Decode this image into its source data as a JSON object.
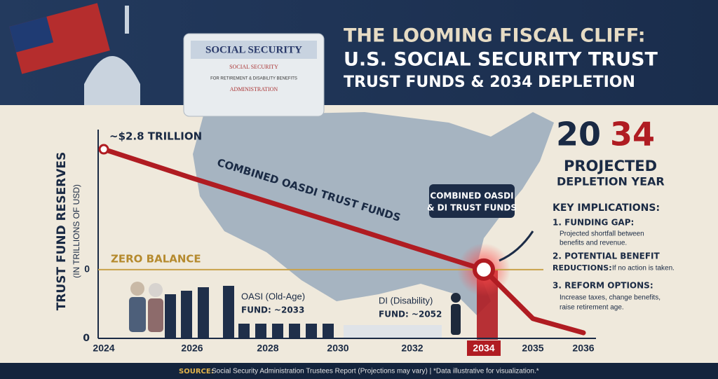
{
  "header": {
    "title_lines": [
      "THE LOOMING FISCAL CLIFF:",
      "U.S. SOCIAL SECURITY TRUST",
      "TRUST FUNDS & 2034 DEPLETION"
    ]
  },
  "card": {
    "title": "SOCIAL SECURITY",
    "seal_top": "SOCIAL SECURITY",
    "subtitle": "FOR RETIREMENT & DISABILITY BENEFITS",
    "seal_bottom": "ADMINISTRATION"
  },
  "chart_data": {
    "type": "line",
    "y_label": "TRUST FUND RESERVES",
    "y_sublabel": "(IN TRILLIONS OF USD)",
    "categories": [
      "2024",
      "2026",
      "2028",
      "2030",
      "2032",
      "2034",
      "2035",
      "2036"
    ],
    "values": [
      2.8,
      2.13,
      1.58,
      1.07,
      0.52,
      0,
      -1.14,
      -1.47
    ],
    "color": "#b01c22",
    "ylim": [
      -1.6,
      3.2
    ],
    "yticks": [
      0
    ],
    "bottom_label": "0",
    "start_label": "~$2.8 TRILLION",
    "line_label": "COMBINED OASDI TRUST FUNDS",
    "callout_lines": [
      "COMBINED OASDI",
      "& DI TRUST FUNDS"
    ],
    "zero_label": "ZERO BALANCE",
    "oasi_lines": [
      "OASI (Old-Age)",
      "FUND: ~2033"
    ],
    "di_lines": [
      "DI (Disability)",
      "FUND: ~2052"
    ]
  },
  "side": {
    "year_prefix": "20",
    "year_suffix": "34",
    "projected": "PROJECTED",
    "depletion": "DEPLETION YEAR",
    "implications_title": "KEY IMPLICATIONS:",
    "items": [
      {
        "heading": "1. FUNDING GAP:",
        "body": [
          "Projected shortfall between",
          "benefits and revenue."
        ]
      },
      {
        "heading": "2. POTENTIAL BENEFIT",
        "heading2": "REDUCTIONS:",
        "body": [
          "If no action is taken."
        ]
      },
      {
        "heading": "3. REFORM OPTIONS:",
        "body": [
          "Increase taxes, change benefits,",
          "raise retirement age."
        ]
      }
    ]
  },
  "footer": {
    "source_label": "SOURCE:",
    "source_text": "Social Security Administration Trustees Report (Projections may vary) | *Data illustrative for visualization.*"
  }
}
